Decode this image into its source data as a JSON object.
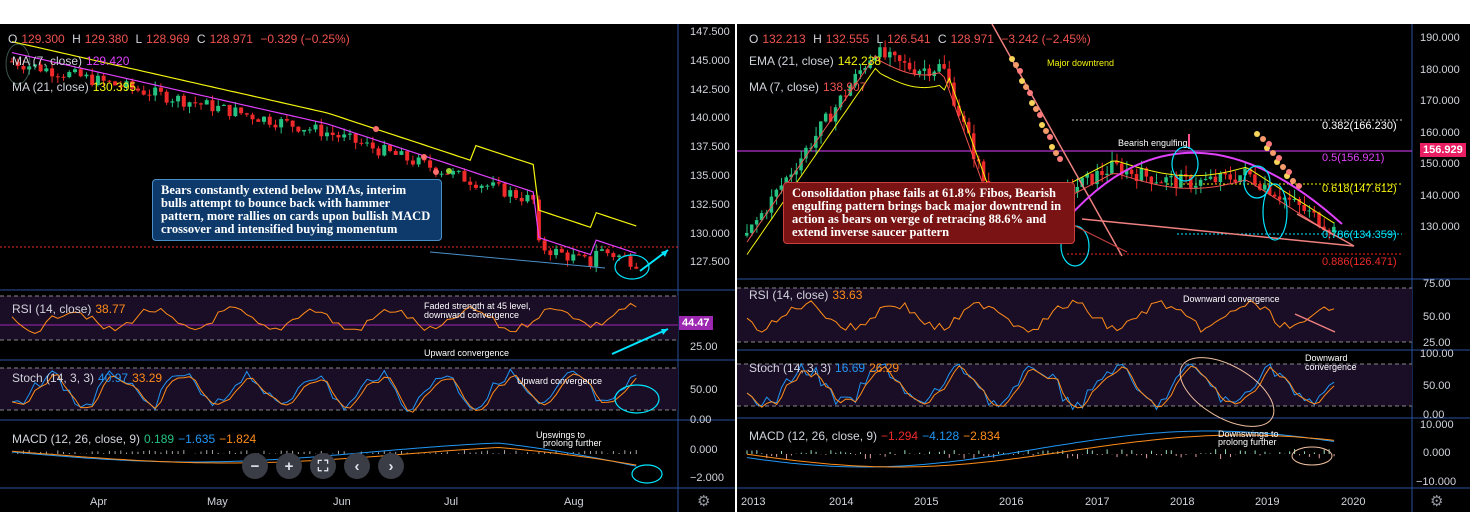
{
  "left": {
    "ohlc": {
      "o_label": "O",
      "o": "129.300",
      "h_label": "H",
      "h": "129.380",
      "l_label": "L",
      "l": "128.969",
      "c_label": "C",
      "c": "128.971",
      "chg": "−0.329 (−0.25%)"
    },
    "ma7": {
      "label": "MA (7, close)",
      "value": "129.420"
    },
    "ma21": {
      "label": "MA (21, close)",
      "value": "130.395"
    },
    "price_ticks": [
      "147.500",
      "145.000",
      "142.500",
      "140.000",
      "137.500",
      "135.000",
      "132.500",
      "130.000",
      "127.500"
    ],
    "callout": "Bears constantly extend below DMAs, interim bulls attempt to bounce back with hammer pattern, more rallies on cards upon bullish MACD crossover and intensified buying momentum",
    "rsi": {
      "label": "RSI (14, close)",
      "value": "38.77",
      "tag": "44.47",
      "tick_25": "25.00",
      "note1": "Faded strength at 45 level,",
      "note2": "downward convergence",
      "note3": "Upward convergence"
    },
    "stoch": {
      "label": "Stoch (14, 3, 3)",
      "k": "40.97",
      "d": "33.29",
      "tick_50": "50.00",
      "tick_0": "0.00",
      "note": "Upward convergence"
    },
    "macd": {
      "label": "MACD (12, 26, close, 9)",
      "v1": "0.189",
      "v2": "−1.635",
      "v3": "−1.824",
      "tick_0": "0.000",
      "tick_m2": "−2.000",
      "note1": "Upswings to",
      "note2": "prolong further"
    },
    "x_ticks": [
      "Apr",
      "May",
      "Jun",
      "Jul",
      "Aug"
    ],
    "controls": [
      "−",
      "+",
      "⛶",
      "‹",
      "›"
    ]
  },
  "right": {
    "ohlc": {
      "o_label": "O",
      "o": "132.213",
      "h_label": "H",
      "h": "132.555",
      "l_label": "L",
      "l": "126.541",
      "c_label": "C",
      "c": "128.971",
      "chg": "−3.242 (−2.45%)"
    },
    "ema21": {
      "label": "EMA (21, close)",
      "value": "142.238"
    },
    "ma7": {
      "label": "MA (7, close)",
      "value": "138.907"
    },
    "price_ticks": [
      "190.000",
      "180.000",
      "170.000",
      "160.000",
      "150.000",
      "140.000",
      "130.000"
    ],
    "price_tag": "156.929",
    "fib": [
      "0.382(166.230)",
      "0.5(156.921)",
      "0.618(147.612)",
      "0.786(134.359)",
      "0.886(126.471)"
    ],
    "major_downtrend": "Major downtrend",
    "bearish_engulfing": "Bearish engulfing",
    "callout": "Consolidation phase fails at 61.8% Fibos, Bearish engulfing pattern brings back major downtrend in action as bears on verge of retracing 88.6% and extend inverse saucer pattern",
    "rsi": {
      "label": "RSI (14, close)",
      "value": "33.63",
      "tick_75": "75.00",
      "tick_50": "50.00",
      "tick_25": "25.00",
      "note": "Downward convergence"
    },
    "stoch": {
      "label": "Stoch (14, 3, 3)",
      "k": "16.69",
      "d": "26.29",
      "tick_100": "100.00",
      "tick_50": "50.00",
      "tick_0": "0.00",
      "note1": "Downward",
      "note2": "convergence"
    },
    "macd": {
      "label": "MACD (12, 26, close, 9)",
      "v1": "−1.294",
      "v2": "−4.128",
      "v3": "−2.834",
      "tick_10": "10.000",
      "tick_0": "0.000",
      "tick_m10": "−10.000",
      "note1": "Downswings to",
      "note2": "prolong further"
    },
    "x_ticks": [
      "2013",
      "2014",
      "2015",
      "2016",
      "2017",
      "2018",
      "2019",
      "2020"
    ]
  },
  "colors": {
    "bull": "#26c281",
    "bear": "#ef2a2a",
    "ma_pink": "#e040fb",
    "ma_yellow": "#f4f40e",
    "rsi": "#ff8c1a",
    "stoch_k": "#2196f3",
    "stoch_d": "#ff8c1a",
    "cyan": "#00e5ff",
    "callout_blue": "#0d3a6b",
    "callout_red": "#7a1414"
  }
}
